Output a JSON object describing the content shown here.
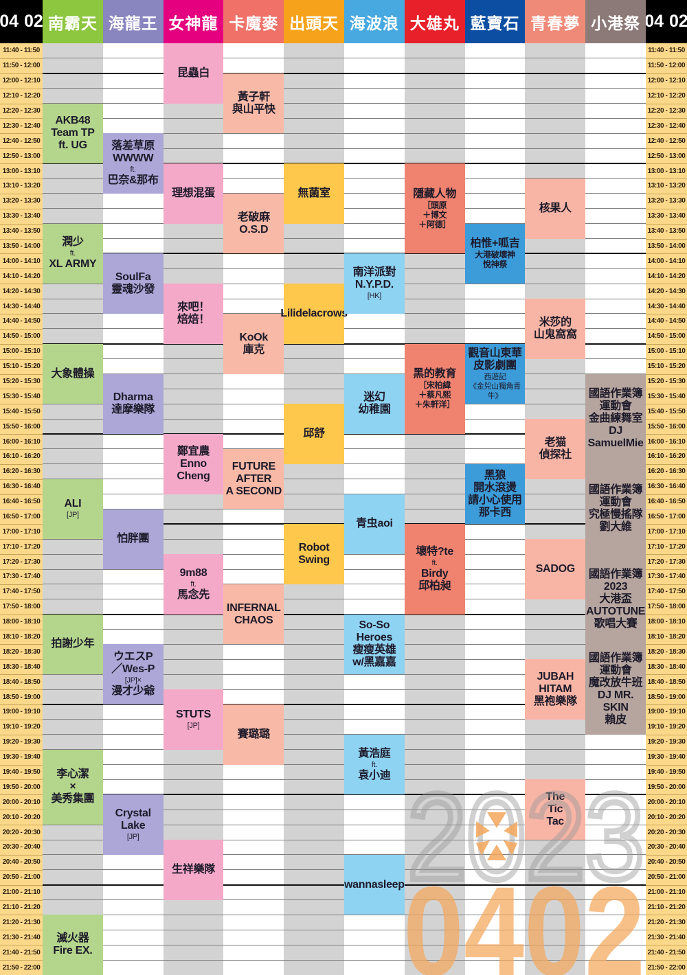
{
  "date_label": {
    "month": "04",
    "day": "02"
  },
  "time_slots": [
    "11:40 - 11:50",
    "11:50 - 12:00",
    "12:00 - 12:10",
    "12:10 - 12:20",
    "12:20 - 12:30",
    "12:30 - 12:40",
    "12:40 - 12:50",
    "12:50 - 13:00",
    "13:00 - 13:10",
    "13:10 - 13:20",
    "13:20 - 13:30",
    "13:30 - 13:40",
    "13:40 - 13:50",
    "13:50 - 14:00",
    "14:00 - 14:10",
    "14:10 - 14:20",
    "14:20 - 14:30",
    "14:30 - 14:40",
    "14:40 - 14:50",
    "14:50 - 15:00",
    "15:00 - 15:10",
    "15:10 - 15:20",
    "15:20 - 15:30",
    "15:30 - 15:40",
    "15:40 - 15:50",
    "15:50 - 16:00",
    "16:00 - 16:10",
    "16:10 - 16:20",
    "16:20 - 16:30",
    "16:30 - 16:40",
    "16:40 - 16:50",
    "16:50 - 17:00",
    "17:00 - 17:10",
    "17:10 - 17:20",
    "17:20 - 17:30",
    "17:30 - 17:40",
    "17:40 - 17:50",
    "17:50 - 18:00",
    "18:00 - 18:10",
    "18:10 - 18:20",
    "18:20 - 18:30",
    "18:30 - 18:40",
    "18:40 - 18:50",
    "18:50 - 19:00",
    "19:00 - 19:10",
    "19:10 - 19:20",
    "19:20 - 19:30",
    "19:30 - 19:40",
    "19:40 - 19:50",
    "19:50 - 20:00",
    "20:00 - 20:10",
    "20:10 - 20:20",
    "20:20 - 20:30",
    "20:30 - 20:40",
    "20:40 - 20:50",
    "20:50 - 21:00",
    "21:00 - 21:10",
    "21:10 - 21:20",
    "21:20 - 21:30",
    "21:30 - 21:40",
    "21:40 - 21:50",
    "21:50 - 22:00"
  ],
  "colors": {
    "time_cell": "#fcd98a",
    "stripe_gray": "#d3d3d3",
    "header_date": "#000000",
    "watermark_orange": "#f5a85c"
  },
  "stages": [
    {
      "name": "南霸天",
      "header_color": "#8dc63f",
      "block_color": "#b4d68c",
      "events": [
        {
          "start": "12:20",
          "end": "13:00",
          "lines": [
            {
              "text": "AKB48"
            },
            {
              "text": "Team TP"
            },
            {
              "text": "ft. UG"
            }
          ]
        },
        {
          "start": "13:40",
          "end": "14:20",
          "lines": [
            {
              "text": "潤少"
            },
            {
              "text": "ft.",
              "sub": true
            },
            {
              "text": "XL ARMY"
            }
          ]
        },
        {
          "start": "15:00",
          "end": "15:40",
          "lines": [
            {
              "text": "大象體操"
            }
          ]
        },
        {
          "start": "16:30",
          "end": "17:10",
          "lines": [
            {
              "text": "ALI"
            },
            {
              "text": "[JP]",
              "sub": true
            }
          ]
        },
        {
          "start": "18:00",
          "end": "18:40",
          "lines": [
            {
              "text": "拍謝少年"
            }
          ]
        },
        {
          "start": "19:30",
          "end": "20:20",
          "lines": [
            {
              "text": "李心潔"
            },
            {
              "text": "×"
            },
            {
              "text": "美秀集團"
            }
          ]
        },
        {
          "start": "21:20",
          "end": "22:00",
          "lines": [
            {
              "text": "滅火器"
            },
            {
              "text": "Fire EX."
            }
          ]
        }
      ]
    },
    {
      "name": "海龍王",
      "header_color": "#8985bf",
      "block_color": "#aca7d7",
      "events": [
        {
          "start": "12:40",
          "end": "13:20",
          "lines": [
            {
              "text": "落差草原"
            },
            {
              "text": "WWWW"
            },
            {
              "text": "ft.",
              "sub": true
            },
            {
              "text": "巴奈&那布"
            }
          ]
        },
        {
          "start": "14:00",
          "end": "14:40",
          "lines": [
            {
              "text": "SoulFa"
            },
            {
              "text": "靈魂沙發"
            }
          ]
        },
        {
          "start": "15:20",
          "end": "16:00",
          "lines": [
            {
              "text": "Dharma"
            },
            {
              "text": "達摩樂隊"
            }
          ]
        },
        {
          "start": "16:50",
          "end": "17:30",
          "lines": [
            {
              "text": "怕胖團"
            }
          ]
        },
        {
          "start": "18:20",
          "end": "19:00",
          "lines": [
            {
              "text": "ウエスP"
            },
            {
              "text": "／Wes-P"
            },
            {
              "text": "[JP]×",
              "sub": true
            },
            {
              "text": "漫才少爺"
            }
          ]
        },
        {
          "start": "20:00",
          "end": "20:40",
          "lines": [
            {
              "text": "Crystal"
            },
            {
              "text": "Lake"
            },
            {
              "text": "[JP]",
              "sub": true
            }
          ]
        }
      ]
    },
    {
      "name": "女神龍",
      "header_color": "#e4007f",
      "block_color": "#f4a9c9",
      "events": [
        {
          "start": "11:40",
          "end": "12:20",
          "lines": [
            {
              "text": "昆蟲白"
            }
          ]
        },
        {
          "start": "13:00",
          "end": "13:40",
          "lines": [
            {
              "text": "理想混蛋"
            }
          ]
        },
        {
          "start": "14:20",
          "end": "15:00",
          "lines": [
            {
              "text": "來吧！"
            },
            {
              "text": "焙焙！"
            }
          ]
        },
        {
          "start": "16:00",
          "end": "16:40",
          "lines": [
            {
              "text": "鄭宜農"
            },
            {
              "text": "Enno Cheng"
            }
          ]
        },
        {
          "start": "17:20",
          "end": "18:00",
          "lines": [
            {
              "text": "9m88"
            },
            {
              "text": "ft.",
              "sub": true
            },
            {
              "text": "馬念先"
            }
          ]
        },
        {
          "start": "18:50",
          "end": "19:30",
          "lines": [
            {
              "text": "STUTS"
            },
            {
              "text": "[JP]",
              "sub": true
            }
          ]
        },
        {
          "start": "20:30",
          "end": "21:10",
          "lines": [
            {
              "text": "生祥樂隊"
            }
          ]
        }
      ]
    },
    {
      "name": "卡魔麥",
      "header_color": "#ef7168",
      "block_color": "#f8b9a6",
      "events": [
        {
          "start": "12:00",
          "end": "12:40",
          "lines": [
            {
              "text": "黃子軒"
            },
            {
              "text": "與山平快"
            }
          ]
        },
        {
          "start": "13:20",
          "end": "14:00",
          "lines": [
            {
              "text": "老破麻"
            },
            {
              "text": "O.S.D"
            }
          ]
        },
        {
          "start": "14:40",
          "end": "15:20",
          "lines": [
            {
              "text": "KoOk"
            },
            {
              "text": "庫克"
            }
          ]
        },
        {
          "start": "16:10",
          "end": "16:50",
          "lines": [
            {
              "text": "FUTURE"
            },
            {
              "text": "AFTER"
            },
            {
              "text": "A SECOND"
            }
          ]
        },
        {
          "start": "17:40",
          "end": "18:20",
          "lines": [
            {
              "text": "INFERNAL"
            },
            {
              "text": "CHAOS"
            }
          ]
        },
        {
          "start": "19:00",
          "end": "19:40",
          "lines": [
            {
              "text": "賽璐璐"
            }
          ]
        }
      ]
    },
    {
      "name": "出頭天",
      "header_color": "#f6a31b",
      "block_color": "#fdc84b",
      "events": [
        {
          "start": "13:00",
          "end": "13:40",
          "lines": [
            {
              "text": "無菌室"
            }
          ]
        },
        {
          "start": "14:20",
          "end": "15:00",
          "lines": [
            {
              "text": "Lilidelacrows"
            }
          ]
        },
        {
          "start": "15:40",
          "end": "16:20",
          "lines": [
            {
              "text": "邱舒"
            }
          ]
        },
        {
          "start": "17:00",
          "end": "17:40",
          "lines": [
            {
              "text": "Robot"
            },
            {
              "text": "Swing"
            }
          ]
        }
      ]
    },
    {
      "name": "海波浪",
      "header_color": "#48a9e0",
      "block_color": "#8fd3f2",
      "events": [
        {
          "start": "14:00",
          "end": "14:40",
          "lines": [
            {
              "text": "南洋派對"
            },
            {
              "text": "N.Y.P.D."
            },
            {
              "text": "[HK]",
              "sub": true
            }
          ]
        },
        {
          "start": "15:20",
          "end": "16:00",
          "lines": [
            {
              "text": "迷幻"
            },
            {
              "text": "幼稚園"
            }
          ]
        },
        {
          "start": "16:40",
          "end": "17:20",
          "lines": [
            {
              "text": "青虫aoi"
            }
          ]
        },
        {
          "start": "18:00",
          "end": "18:40",
          "lines": [
            {
              "text": "So-So"
            },
            {
              "text": "Heroes"
            },
            {
              "text": "瘦瘦英雄"
            },
            {
              "text": "w/黑嘉嘉"
            }
          ]
        },
        {
          "start": "19:20",
          "end": "20:00",
          "lines": [
            {
              "text": "黃浩庭"
            },
            {
              "text": "ft.",
              "sub": true
            },
            {
              "text": "袁小迪"
            }
          ]
        },
        {
          "start": "20:40",
          "end": "21:20",
          "lines": [
            {
              "text": "wannasleep"
            }
          ]
        }
      ]
    },
    {
      "name": "大雄丸",
      "header_color": "#e8202a",
      "block_color": "#f0836f",
      "events": [
        {
          "start": "13:00",
          "end": "14:00",
          "lines": [
            {
              "text": "隱藏人物"
            },
            {
              "text": "［頭原",
              "mid": true
            },
            {
              "text": "＋博文",
              "mid": true
            },
            {
              "text": "＋阿德］",
              "mid": true
            }
          ]
        },
        {
          "start": "15:00",
          "end": "16:00",
          "lines": [
            {
              "text": "黑的教育"
            },
            {
              "text": "［宋柏緯",
              "mid": true
            },
            {
              "text": "＋蔡凡熙",
              "mid": true
            },
            {
              "text": "＋朱軒洋］",
              "mid": true
            }
          ]
        },
        {
          "start": "17:00",
          "end": "18:00",
          "lines": [
            {
              "text": "壞特?te"
            },
            {
              "text": "ft.",
              "sub": true
            },
            {
              "text": "Birdy"
            },
            {
              "text": "邱柏昶"
            }
          ]
        }
      ]
    },
    {
      "name": "藍寶石",
      "header_color": "#0b4ea2",
      "block_color": "#3c9bd9",
      "events": [
        {
          "start": "13:40",
          "end": "14:20",
          "lines": [
            {
              "text": "柏惟+呱吉"
            },
            {
              "text": "大港破壞神",
              "mid": true
            },
            {
              "text": "悅神祭",
              "mid": true
            }
          ]
        },
        {
          "start": "15:00",
          "end": "15:40",
          "lines": [
            {
              "text": "觀音山東華"
            },
            {
              "text": "皮影劇團"
            },
            {
              "text": "西遊記",
              "sub": true
            },
            {
              "text": "《金兕山獨角青牛》",
              "sub": true
            }
          ]
        },
        {
          "start": "16:20",
          "end": "17:00",
          "lines": [
            {
              "text": "黑狼"
            },
            {
              "text": "開水滾燙"
            },
            {
              "text": "請小心使用"
            },
            {
              "text": "那卡西"
            }
          ]
        }
      ]
    },
    {
      "name": "青春夢",
      "header_color": "#f08a78",
      "block_color": "#f8b5a5",
      "events": [
        {
          "start": "13:10",
          "end": "13:50",
          "lines": [
            {
              "text": "核果人"
            }
          ]
        },
        {
          "start": "14:30",
          "end": "15:10",
          "lines": [
            {
              "text": "米莎的"
            },
            {
              "text": "山鬼窩窩"
            }
          ]
        },
        {
          "start": "15:50",
          "end": "16:30",
          "lines": [
            {
              "text": "老猫"
            },
            {
              "text": "偵探社"
            }
          ]
        },
        {
          "start": "17:10",
          "end": "17:50",
          "lines": [
            {
              "text": "SADOG"
            }
          ]
        },
        {
          "start": "18:30",
          "end": "19:10",
          "lines": [
            {
              "text": "JUBAH"
            },
            {
              "text": "HITAM"
            },
            {
              "text": "黑袍樂隊"
            }
          ]
        },
        {
          "start": "19:50",
          "end": "20:30",
          "lines": [
            {
              "text": "The"
            },
            {
              "text": "Tic"
            },
            {
              "text": "Tac"
            }
          ]
        }
      ]
    },
    {
      "name": "小港祭",
      "header_color": "#8c7a78",
      "block_color": "#b5a59e",
      "events": [
        {
          "start": "15:20",
          "end": "16:20",
          "lines": [
            {
              "text": "國語作業簿"
            },
            {
              "text": "運動會"
            },
            {
              "text": "金曲練舞室"
            },
            {
              "text": "DJ"
            },
            {
              "text": "SamuelMie"
            }
          ]
        },
        {
          "start": "16:20",
          "end": "17:20",
          "lines": [
            {
              "text": "國語作業簿"
            },
            {
              "text": "運動會"
            },
            {
              "text": "究極慢搖隊"
            },
            {
              "text": "劉大維"
            }
          ]
        },
        {
          "start": "17:20",
          "end": "18:20",
          "lines": [
            {
              "text": "國語作業簿"
            },
            {
              "text": "2023"
            },
            {
              "text": "大港盃"
            },
            {
              "text": "AUTOTUNE"
            },
            {
              "text": "歌唱大賽"
            }
          ]
        },
        {
          "start": "18:20",
          "end": "19:20",
          "lines": [
            {
              "text": "國語作業簿"
            },
            {
              "text": "運動會"
            },
            {
              "text": "魔改放牛班"
            },
            {
              "text": "DJ MR. SKIN"
            },
            {
              "text": "賴皮"
            }
          ]
        }
      ]
    }
  ],
  "watermark": {
    "year": "2023",
    "date": "0402",
    "logo": "megaport-star-icon"
  }
}
